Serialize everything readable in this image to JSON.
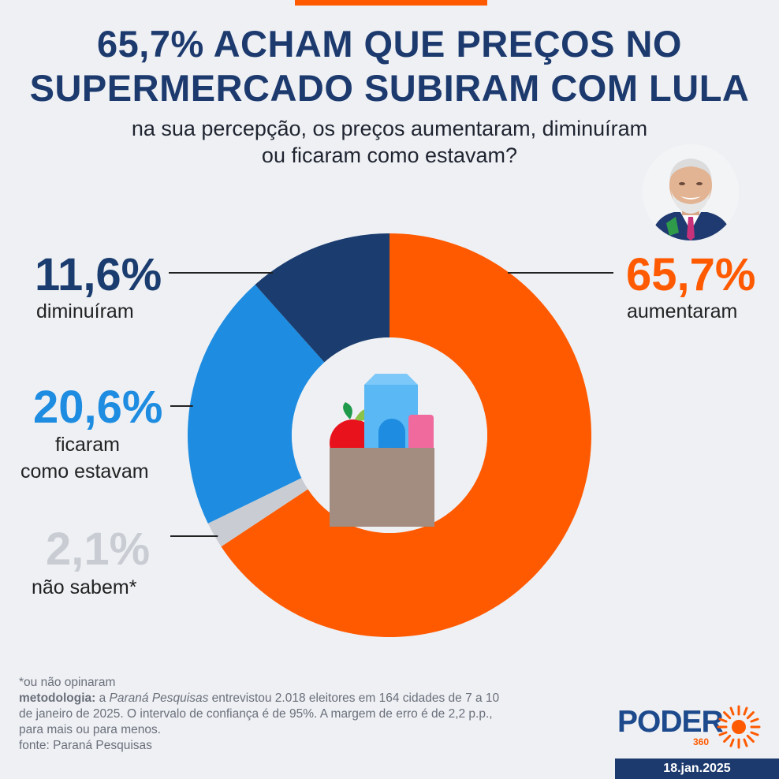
{
  "header": {
    "title_line1": "65,7% ACHAM QUE PREÇOS NO",
    "title_line2": "SUPERMERCADO SUBIRAM COM LULA",
    "subtitle_line1": "na sua percepção, os preços aumentaram, diminuíram",
    "subtitle_line2": "ou ficaram como estavam?"
  },
  "chart_data": {
    "type": "pie",
    "variant": "donut",
    "title": "65,7% ACHAM QUE PREÇOS NO SUPERMERCADO SUBIRAM COM LULA",
    "subtitle": "na sua percepção, os preços aumentaram, diminuíram ou ficaram como estavam?",
    "categories": [
      "aumentaram",
      "não sabem*",
      "ficaram como estavam",
      "diminuíram"
    ],
    "values": [
      65.7,
      2.1,
      20.6,
      11.6
    ],
    "display_values": [
      "65,7%",
      "2,1%",
      "20,6%",
      "11,6%"
    ],
    "colors": [
      "#ff5a00",
      "#c9cdd3",
      "#1e8ce0",
      "#1b3c6e"
    ],
    "labels": {
      "aumentaram": {
        "value": "65,7%",
        "text": "aumentaram"
      },
      "diminuiram": {
        "value": "11,6%",
        "text": "diminuíram"
      },
      "ficaram": {
        "value": "20,6%",
        "text_line1": "ficaram",
        "text_line2": "como estavam"
      },
      "nao_sabem": {
        "value": "2,1%",
        "text": "não sabem*"
      }
    }
  },
  "footer": {
    "footnote": "*ou não opinaram",
    "method_label": "metodologia:",
    "method_a": " a ",
    "method_source_italic": "Paraná Pesquisas",
    "method_rest_line1": " entrevistou 2.018 eleitores em 164 cidades de 7 a 10",
    "method_line2": "de janeiro de 2025. O intervalo de confiança é de 95%. A margem de erro é de 2,2 p.p.,",
    "method_line3": "para mais ou para menos.",
    "source": "fonte: Paraná Pesquisas"
  },
  "brand": {
    "name": "PODER",
    "sub": "360",
    "date": "18.jan.2025"
  }
}
